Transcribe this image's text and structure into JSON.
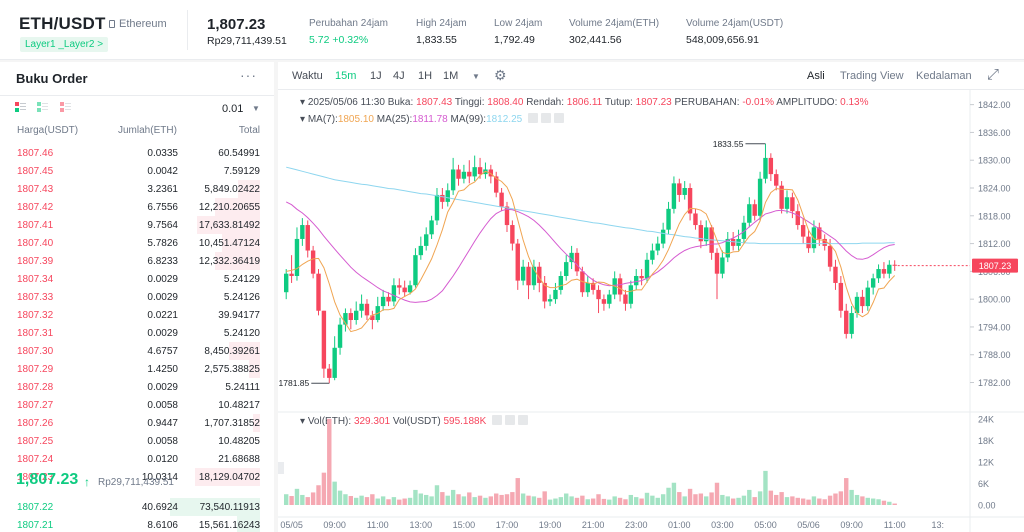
{
  "header": {
    "pair": "ETH/USDT",
    "chip": "Ethereum",
    "tag": "Layer1 _Layer2 >",
    "last_price": "1,807.23",
    "last_price_rp": "Rp29,711,439.51",
    "stats": [
      {
        "label": "Perubahan 24jam",
        "value": "5.72 +0.32%",
        "green": true
      },
      {
        "label": "High 24jam",
        "value": "1,833.55"
      },
      {
        "label": "Low 24jam",
        "value": "1,792.49"
      },
      {
        "label": "Volume 24jam(ETH)",
        "value": "302,441.56"
      },
      {
        "label": "Volume 24jam(USDT)",
        "value": "548,009,656.91"
      }
    ]
  },
  "orderbook": {
    "title": "Buku Order",
    "menu": "···",
    "tick": "0.01",
    "caret": "▼",
    "headers": [
      "Harga(USDT)",
      "Jumlah(ETH)",
      "Total"
    ],
    "asks": [
      [
        "1807.46",
        "0.0335",
        "60.54991",
        0
      ],
      [
        "1807.45",
        "0.0042",
        "7.59129",
        0
      ],
      [
        "1807.43",
        "3.2361",
        "5,849.02422",
        0.25
      ],
      [
        "1807.42",
        "6.7556",
        "12,210.20655",
        0.5
      ],
      [
        "1807.41",
        "9.7564",
        "17,633.81492",
        0.7
      ],
      [
        "1807.40",
        "5.7826",
        "10,451.47124",
        0.42
      ],
      [
        "1807.39",
        "6.8233",
        "12,332.36419",
        0.5
      ],
      [
        "1807.34",
        "0.0029",
        "5.24129",
        0
      ],
      [
        "1807.33",
        "0.0029",
        "5.24126",
        0
      ],
      [
        "1807.32",
        "0.0221",
        "39.94177",
        0
      ],
      [
        "1807.31",
        "0.0029",
        "5.24120",
        0
      ],
      [
        "1807.30",
        "4.6757",
        "8,450.39261",
        0.34
      ],
      [
        "1807.29",
        "1.4250",
        "2,575.38825",
        0.12
      ],
      [
        "1807.28",
        "0.0029",
        "5.24111",
        0
      ],
      [
        "1807.27",
        "0.0058",
        "10.48217",
        0
      ],
      [
        "1807.26",
        "0.9447",
        "1,707.31852",
        0.08
      ],
      [
        "1807.25",
        "0.0058",
        "10.48205",
        0
      ],
      [
        "1807.24",
        "0.0120",
        "21.68688",
        0
      ],
      [
        "1807.23",
        "10.0314",
        "18,129.04702",
        0.72
      ]
    ],
    "mid_price": "1,807.23",
    "mid_arrow": "↑",
    "mid_rp": "Rp29,711,439.51",
    "bids": [
      [
        "1807.22",
        "40.6924",
        "73,540.11913",
        1.0
      ],
      [
        "1807.21",
        "8.6106",
        "15,561.16243",
        0.26
      ]
    ]
  },
  "chart_toolbar": {
    "intervals": [
      "Waktu",
      "15m",
      "1J",
      "4J",
      "1H",
      "1M"
    ],
    "active": "15m",
    "more": "▼",
    "settings_icon": "⚙",
    "views": [
      "Asli",
      "Trading View",
      "Kedalaman"
    ],
    "active_view": "Asli",
    "expand_icon": "⤢"
  },
  "chart_info": {
    "line1": {
      "date": "2025/05/06 11:30",
      "buka_l": "Buka:",
      "buka": "1807.43",
      "tinggi_l": "Tinggi:",
      "tinggi": "1808.40",
      "rendah_l": "Rendah:",
      "rendah": "1806.11",
      "tutup_l": "Tutup:",
      "tutup": "1807.23",
      "ubah_l": "PERUBAHAN:",
      "ubah": "-0.01%",
      "amp_l": "AMPLITUDO:",
      "amp": "0.13%"
    },
    "line2": {
      "ma7_l": "MA(7):",
      "ma7": "1805.10",
      "ma25_l": "MA(25):",
      "ma25": "1811.78",
      "ma99_l": "MA(99):",
      "ma99": "1812.25"
    },
    "vol": {
      "eth_l": "Vol(ETH):",
      "eth": "329.301",
      "usdt_l": "Vol(USDT)",
      "usdt": "595.188K"
    }
  },
  "colors": {
    "up": "#0ecb81",
    "down": "#f6465d",
    "ma7": "#f0a552",
    "ma25": "#d55bd0",
    "ma99": "#8ed6ef"
  },
  "chart_data": {
    "type": "candlestick",
    "y_ticks": [
      1842,
      1836,
      1830,
      1824,
      1818,
      1812,
      1806,
      1800,
      1794,
      1788,
      1782
    ],
    "y_tick_labels": [
      "1842.00",
      "1836.00",
      "1830.00",
      "1824.00",
      "1818.00",
      "1812.00",
      "1806.00",
      "1800.00",
      "1794.00",
      "1788.00",
      "1782.00"
    ],
    "ylim": [
      1776.5,
      1843
    ],
    "vol_ticks": [
      "24K",
      "18K",
      "12K",
      "6K",
      "0.00"
    ],
    "vol_tick_values": [
      24000,
      18000,
      12000,
      6000,
      0
    ],
    "vol_max": 24500,
    "x_labels": [
      "05/05",
      "09:00",
      "11:00",
      "13:00",
      "15:00",
      "17:00",
      "19:00",
      "21:00",
      "23:00",
      "01:00",
      "03:00",
      "05:00",
      "05/06",
      "09:00",
      "11:00",
      "13:"
    ],
    "x_label_idx": [
      1,
      9,
      17,
      25,
      33,
      41,
      49,
      57,
      65,
      73,
      81,
      89,
      97,
      105,
      113,
      121
    ],
    "high_label": "1833.55",
    "low_label": "1781.85",
    "last_label": "1807.23",
    "ohlc": [
      [
        1801.5,
        1805.5,
        1800,
        1806.5
      ],
      [
        1805.5,
        1805,
        1803.5,
        1809.5
      ],
      [
        1805,
        1813,
        1804,
        1815.5
      ],
      [
        1813,
        1816,
        1811.5,
        1817.5
      ],
      [
        1816,
        1810.5,
        1809,
        1817
      ],
      [
        1810.5,
        1805.5,
        1804.5,
        1811.5
      ],
      [
        1805.5,
        1797.5,
        1796.5,
        1806.5
      ],
      [
        1797.5,
        1785,
        1783,
        1797.5
      ],
      [
        1785,
        1783,
        1781.85,
        1786
      ],
      [
        1783,
        1789.5,
        1782.5,
        1792
      ],
      [
        1789.5,
        1794.5,
        1788,
        1796
      ],
      [
        1794.5,
        1797,
        1793,
        1798
      ],
      [
        1797,
        1795.5,
        1793.5,
        1798
      ],
      [
        1795.5,
        1797.5,
        1794.5,
        1799.5
      ],
      [
        1797.5,
        1799,
        1796,
        1801
      ],
      [
        1799,
        1796.5,
        1795.5,
        1800
      ],
      [
        1796.5,
        1795.5,
        1793.5,
        1797.5
      ],
      [
        1795.5,
        1798.5,
        1795,
        1800.5
      ],
      [
        1798.5,
        1800.5,
        1797.5,
        1802
      ],
      [
        1800.5,
        1799.5,
        1798.5,
        1801.5
      ],
      [
        1799.5,
        1803,
        1798.5,
        1804.5
      ],
      [
        1803,
        1802.5,
        1801,
        1804.5
      ],
      [
        1802.5,
        1801.5,
        1800.5,
        1804
      ],
      [
        1801.5,
        1803,
        1801,
        1804
      ],
      [
        1803,
        1809.5,
        1802.5,
        1811
      ],
      [
        1809.5,
        1811.5,
        1808.5,
        1813.5
      ],
      [
        1811.5,
        1814,
        1810.5,
        1815.5
      ],
      [
        1814,
        1817,
        1813,
        1818
      ],
      [
        1817,
        1822.5,
        1816,
        1824
      ],
      [
        1822.5,
        1821,
        1819.5,
        1824
      ],
      [
        1821,
        1823.5,
        1820,
        1825
      ],
      [
        1823.5,
        1828,
        1822.5,
        1830.5
      ],
      [
        1828,
        1826,
        1824.5,
        1829
      ],
      [
        1826,
        1827.5,
        1825,
        1829
      ],
      [
        1827.5,
        1826.5,
        1825,
        1830
      ],
      [
        1826.5,
        1828.5,
        1825.5,
        1831
      ],
      [
        1828.5,
        1827,
        1826,
        1830.5
      ],
      [
        1827,
        1828,
        1826,
        1829.5
      ],
      [
        1828,
        1826.5,
        1825,
        1829
      ],
      [
        1826.5,
        1823,
        1822,
        1827.5
      ],
      [
        1823,
        1820,
        1819,
        1824
      ],
      [
        1820,
        1816,
        1814.5,
        1821
      ],
      [
        1816,
        1812,
        1810.5,
        1817
      ],
      [
        1812,
        1804,
        1802,
        1813
      ],
      [
        1804,
        1807,
        1803,
        1808.5
      ],
      [
        1807,
        1803,
        1800,
        1808
      ],
      [
        1803,
        1807,
        1802,
        1808.5
      ],
      [
        1807,
        1803.5,
        1801.5,
        1808
      ],
      [
        1803.5,
        1799.5,
        1798,
        1805
      ],
      [
        1799.5,
        1800,
        1798.5,
        1801
      ],
      [
        1800,
        1802,
        1799,
        1803.5
      ],
      [
        1802,
        1805,
        1801,
        1806
      ],
      [
        1805,
        1808,
        1804,
        1809.5
      ],
      [
        1808,
        1810,
        1806.5,
        1811.5
      ],
      [
        1810,
        1806,
        1805,
        1811
      ],
      [
        1806,
        1801.5,
        1800.5,
        1807
      ],
      [
        1801.5,
        1803.5,
        1800.5,
        1805
      ],
      [
        1803.5,
        1802,
        1801,
        1804.5
      ],
      [
        1802,
        1800,
        1797,
        1803
      ],
      [
        1800,
        1799,
        1797.5,
        1801
      ],
      [
        1799,
        1801,
        1798,
        1802
      ],
      [
        1801,
        1804.5,
        1800,
        1806
      ],
      [
        1804.5,
        1801,
        1799.5,
        1805.5
      ],
      [
        1801,
        1799,
        1797.5,
        1802
      ],
      [
        1799,
        1803,
        1798,
        1804
      ],
      [
        1803,
        1805,
        1802,
        1806.5
      ],
      [
        1805,
        1804.5,
        1803,
        1806.5
      ],
      [
        1804.5,
        1808.5,
        1803.5,
        1810
      ],
      [
        1808.5,
        1810.5,
        1807.5,
        1812
      ],
      [
        1810.5,
        1812,
        1809.5,
        1813.5
      ],
      [
        1812,
        1815,
        1811,
        1816.5
      ],
      [
        1815,
        1819.5,
        1814,
        1821
      ],
      [
        1819.5,
        1825,
        1818.5,
        1826.5
      ],
      [
        1825,
        1822.5,
        1821,
        1826
      ],
      [
        1822.5,
        1824,
        1821.5,
        1825.5
      ],
      [
        1824,
        1818.5,
        1817,
        1825
      ],
      [
        1818.5,
        1816,
        1815,
        1819.5
      ],
      [
        1816,
        1812.5,
        1811,
        1817
      ],
      [
        1812.5,
        1815.5,
        1811.5,
        1817
      ],
      [
        1815.5,
        1810,
        1808.5,
        1816
      ],
      [
        1810,
        1805.5,
        1800,
        1811
      ],
      [
        1805.5,
        1809,
        1804.5,
        1810.5
      ],
      [
        1809,
        1813,
        1808,
        1814.5
      ],
      [
        1813,
        1811.5,
        1810.5,
        1814.5
      ],
      [
        1811.5,
        1813,
        1810.5,
        1815
      ],
      [
        1813,
        1816.5,
        1812,
        1818
      ],
      [
        1816.5,
        1820.5,
        1815.5,
        1822
      ],
      [
        1820.5,
        1818,
        1817,
        1821.5
      ],
      [
        1818,
        1826,
        1817,
        1827.5
      ],
      [
        1826,
        1830.5,
        1825,
        1833.55
      ],
      [
        1830.5,
        1827,
        1825.5,
        1831.5
      ],
      [
        1827,
        1824.5,
        1823.5,
        1828
      ],
      [
        1824.5,
        1819.5,
        1818.5,
        1825.5
      ],
      [
        1819.5,
        1822,
        1818.5,
        1823.5
      ],
      [
        1822,
        1819,
        1817.5,
        1823
      ],
      [
        1819,
        1816,
        1815,
        1820.5
      ],
      [
        1816,
        1813.5,
        1812,
        1817.5
      ],
      [
        1813.5,
        1811,
        1810,
        1815
      ],
      [
        1811,
        1815.5,
        1810,
        1817
      ],
      [
        1815.5,
        1813,
        1811.5,
        1816.5
      ],
      [
        1813,
        1811.5,
        1810.5,
        1814
      ],
      [
        1811.5,
        1807,
        1806,
        1813
      ],
      [
        1807,
        1803.5,
        1802,
        1808.5
      ],
      [
        1803.5,
        1797.5,
        1796,
        1805
      ],
      [
        1797.5,
        1792.5,
        1791.5,
        1799
      ],
      [
        1792.5,
        1797,
        1791.5,
        1798.5
      ],
      [
        1797,
        1800.5,
        1796,
        1801.5
      ],
      [
        1800.5,
        1798.5,
        1797,
        1802
      ],
      [
        1798.5,
        1802.5,
        1797.5,
        1804
      ],
      [
        1802.5,
        1804.5,
        1801,
        1805.5
      ],
      [
        1804.5,
        1806.5,
        1803.5,
        1807.5
      ],
      [
        1806.5,
        1805.5,
        1804.5,
        1808
      ],
      [
        1805.5,
        1807.43,
        1804.5,
        1808.4
      ],
      [
        1807.43,
        1807.23,
        1806.11,
        1808.4
      ]
    ],
    "volume": [
      3000,
      2500,
      4500,
      2800,
      2200,
      3500,
      5500,
      9000,
      24000,
      6500,
      4000,
      3000,
      2500,
      2000,
      2600,
      2200,
      3000,
      1800,
      2400,
      1600,
      2200,
      1500,
      1800,
      2000,
      4200,
      3200,
      2800,
      2400,
      5500,
      3600,
      2600,
      4200,
      3000,
      2400,
      3500,
      2200,
      2600,
      2000,
      2400,
      3200,
      2800,
      3000,
      3600,
      7500,
      3200,
      2600,
      2400,
      2000,
      3800,
      1500,
      1800,
      2200,
      3200,
      2400,
      2000,
      2600,
      1600,
      1800,
      3000,
      1700,
      1500,
      2400,
      2000,
      1600,
      2800,
      2200,
      1800,
      3400,
      2600,
      2000,
      3000,
      4800,
      6200,
      3600,
      2400,
      4500,
      3000,
      3200,
      2400,
      3500,
      6200,
      2800,
      2400,
      1800,
      2000,
      2600,
      4200,
      2200,
      3800,
      9500,
      4000,
      2800,
      3600,
      2200,
      2400,
      2000,
      1800,
      1500,
      2400,
      1800,
      1600,
      2600,
      3200,
      3800,
      7500,
      4200,
      2800,
      2400,
      2000,
      1800,
      1600,
      1200,
      900,
      400
    ],
    "ma7": [
      1806,
      1806.2,
      1806.6,
      1807.5,
      1808.2,
      1808.7,
      1808.8,
      1806.8,
      1803.3,
      1799.4,
      1796.6,
      1794.8,
      1793,
      1793.3,
      1793.8,
      1795.2,
      1796.6,
      1796.9,
      1797.7,
      1797.7,
      1798,
      1799.9,
      1800.6,
      1801.2,
      1802.2,
      1804.2,
      1806.4,
      1808.7,
      1811.7,
      1815,
      1818.8,
      1820.9,
      1823.3,
      1823.6,
      1824.7,
      1825.3,
      1826.7,
      1827.6,
      1827.1,
      1826.1,
      1825.4,
      1824.2,
      1821.5,
      1817.1,
      1812.8,
      1809.2,
      1806.5,
      1804.6,
      1803,
      1802.5,
      1802.5,
      1802.9,
      1803.2,
      1804.1,
      1804.3,
      1803.8,
      1803.5,
      1803.2,
      1803.7,
      1803.6,
      1803.1,
      1802.8,
      1802.3,
      1801.6,
      1801.7,
      1802,
      1802,
      1803.7,
      1805.4,
      1806.7,
      1808.4,
      1810.7,
      1813.5,
      1816.3,
      1818.3,
      1819.6,
      1819.5,
      1819.2,
      1818.4,
      1815.7,
      1812.7,
      1810.1,
      1809.8,
      1810.2,
      1810.3,
      1812,
      1813.6,
      1814.6,
      1816.9,
      1820.9,
      1823,
      1823.9,
      1823.7,
      1823.7,
      1823.6,
      1821.4,
      1818.1,
      1814.9,
      1813,
      1812.8,
      1812.7,
      1811.8,
      1810.3,
      1806.9,
      1802.6,
      1799.1,
      1797,
      1796.2,
      1796.9,
      1799.3,
      1802.2,
      1802.4,
      1803.9,
      1805.1
    ],
    "ma25": [
      1821,
      1820.4,
      1819.4,
      1818.6,
      1817.6,
      1816.4,
      1815.1,
      1813.6,
      1812.2,
      1810.8,
      1809.5,
      1808.2,
      1806.9,
      1805.8,
      1804.9,
      1804.1,
      1803.3,
      1802.5,
      1801.8,
      1801.3,
      1800.8,
      1800.3,
      1799.8,
      1799.4,
      1799.3,
      1799.4,
      1799.5,
      1800,
      1800.8,
      1801.8,
      1803.4,
      1805,
      1806.8,
      1808.7,
      1810.6,
      1812.5,
      1814.3,
      1815.9,
      1817.4,
      1818.5,
      1819.1,
      1819.4,
      1819.3,
      1818.9,
      1818.4,
      1817.8,
      1817,
      1816,
      1814.8,
      1813.5,
      1812.2,
      1810.9,
      1809.7,
      1808.6,
      1807.4,
      1806.1,
      1805,
      1804.1,
      1803.5,
      1803.1,
      1802.9,
      1803,
      1803.1,
      1803.4,
      1803.6,
      1803.8,
      1804,
      1804.5,
      1805.2,
      1805.9,
      1806.8,
      1807.8,
      1808.9,
      1809.8,
      1810.5,
      1811,
      1811.3,
      1811.5,
      1811.7,
      1811.9,
      1811.9,
      1812.2,
      1812.7,
      1813.2,
      1813.8,
      1814.6,
      1815.6,
      1816.6,
      1817.5,
      1818.4,
      1818.7,
      1819.1,
      1819.2,
      1819,
      1818.6,
      1818.1,
      1817.4,
      1816.7,
      1815.9,
      1815.2,
      1814.4,
      1813.6,
      1812.8,
      1811.6,
      1810.4,
      1809.4,
      1808.7,
      1808.6,
      1808.9,
      1809.6,
      1810.4,
      1811.1,
      1811.6,
      1811.8
    ],
    "ma99": [
      1828.5,
      1828.2,
      1827.9,
      1827.6,
      1827.3,
      1827,
      1826.7,
      1826.4,
      1826.1,
      1825.8,
      1825.6,
      1825.4,
      1825.2,
      1825,
      1824.8,
      1824.7,
      1824.5,
      1824.3,
      1824.1,
      1823.9,
      1823.8,
      1823.6,
      1823.4,
      1823.2,
      1823,
      1822.8,
      1822.7,
      1822.5,
      1822.3,
      1822.1,
      1821.9,
      1821.7,
      1821.5,
      1821.3,
      1821.1,
      1820.9,
      1820.7,
      1820.5,
      1820.3,
      1820.1,
      1819.9,
      1819.7,
      1819.5,
      1819.3,
      1819.1,
      1818.9,
      1818.7,
      1818.5,
      1818.3,
      1818.1,
      1817.9,
      1817.7,
      1817.5,
      1817.3,
      1817.1,
      1816.9,
      1816.7,
      1816.5,
      1816.4,
      1816.2,
      1816,
      1815.8,
      1815.6,
      1815.4,
      1815.3,
      1815.1,
      1814.9,
      1814.7,
      1814.6,
      1814.4,
      1814.2,
      1814,
      1813.9,
      1813.7,
      1813.5,
      1813.4,
      1813.2,
      1813.1,
      1812.9,
      1812.8,
      1812.7,
      1812.6,
      1812.5,
      1812.4,
      1812.3,
      1812.2,
      1812.1,
      1812.1,
      1812,
      1812,
      1812,
      1812,
      1812,
      1812,
      1812,
      1812,
      1812,
      1812,
      1812,
      1812,
      1812,
      1812,
      1812,
      1812,
      1812,
      1812,
      1812,
      1812.1,
      1812.1,
      1812.1,
      1812.1,
      1812.1,
      1812.2,
      1812.2
    ]
  }
}
